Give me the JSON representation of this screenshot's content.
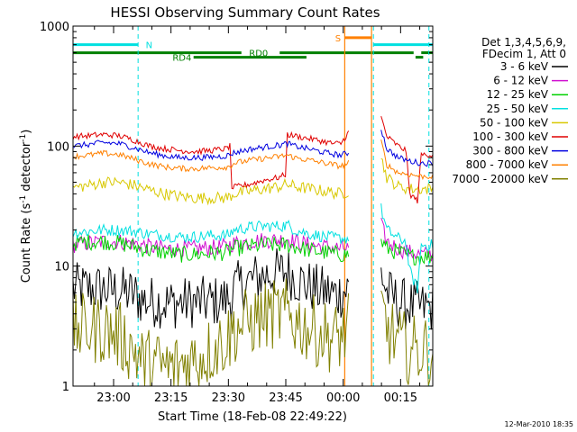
{
  "chart_data": {
    "type": "line",
    "title": "HESSI Observing Summary Count Rates",
    "xlabel": "Start Time (18-Feb-08 22:49:22)",
    "ylabel_main": "Count Rate (s",
    "ylabel_sup1": "-1",
    "ylabel_mid": " detector",
    "ylabel_sup2": "-1",
    "ylabel_end": ")",
    "y_scale": "log",
    "ylim": [
      1,
      1000
    ],
    "xlim_minutes": [
      0,
      94
    ],
    "x_ticks": [
      {
        "label": "23:00",
        "t": 10.6
      },
      {
        "label": "23:15",
        "t": 25.6
      },
      {
        "label": "23:30",
        "t": 40.6
      },
      {
        "label": "23:45",
        "t": 55.6
      },
      {
        "label": "00:00",
        "t": 70.6
      },
      {
        "label": "00:15",
        "t": 85.6
      }
    ],
    "y_ticks": [
      {
        "label": "1",
        "v": 1
      },
      {
        "label": "10",
        "v": 10
      },
      {
        "label": "100",
        "v": 100
      },
      {
        "label": "1000",
        "v": 1000
      }
    ],
    "legend_header": [
      "Det 1,3,4,5,6,9,",
      "FDecim 1, Att 0"
    ],
    "legend_placement": "right",
    "series": [
      {
        "name": "3 - 6 keV",
        "color": "#000000",
        "x": [
          0,
          4,
          8,
          12,
          16,
          18,
          22,
          26,
          30,
          34,
          38,
          41,
          42,
          45,
          48,
          51,
          54,
          56,
          58,
          61,
          64,
          67,
          69,
          70,
          72,
          80,
          80.5,
          82,
          85,
          88,
          91,
          94
        ],
        "y": [
          6.5,
          6.5,
          6.4,
          6.2,
          5.8,
          5.2,
          5.0,
          4.9,
          5.0,
          5.0,
          5.1,
          5.3,
          6.5,
          7.2,
          8.0,
          8.5,
          8.8,
          9.0,
          8.0,
          7.0,
          6.3,
          6.0,
          5.8,
          6.0,
          6.5,
          null,
          9.0,
          6.0,
          5.0,
          4.7,
          4.5,
          4.5
        ]
      },
      {
        "name": "6 - 12 keV",
        "color": "#d010d0",
        "x": [
          0,
          4,
          8,
          12,
          16,
          20,
          24,
          28,
          32,
          36,
          40,
          41,
          42,
          46,
          50,
          54,
          56,
          58,
          62,
          66,
          70,
          72,
          80,
          80.5,
          82,
          85,
          88,
          91,
          94
        ],
        "y": [
          15,
          15.5,
          16,
          16,
          15.5,
          14.5,
          14,
          13.8,
          14,
          14.2,
          14.5,
          15,
          15.5,
          16,
          16.5,
          16.5,
          17,
          16,
          15,
          14.5,
          14,
          14,
          null,
          22,
          16,
          14,
          13,
          12.5,
          12.5
        ]
      },
      {
        "name": "12 - 25 keV",
        "color": "#00d000",
        "x": [
          0,
          4,
          8,
          12,
          16,
          20,
          24,
          28,
          32,
          36,
          40,
          41,
          42,
          46,
          50,
          54,
          56,
          58,
          62,
          66,
          70,
          72,
          80,
          80.5,
          82,
          85,
          88,
          91,
          94
        ],
        "y": [
          15.5,
          16,
          16,
          15.5,
          14.5,
          13.5,
          13,
          12.5,
          12.5,
          12.8,
          13,
          13.5,
          14,
          14.5,
          15,
          15,
          15,
          14.5,
          13.5,
          13,
          12.5,
          12.5,
          null,
          16,
          14,
          13,
          12,
          12,
          12
        ]
      },
      {
        "name": "25 - 50 keV",
        "color": "#00e0e0",
        "x": [
          0,
          4,
          8,
          12,
          16,
          20,
          24,
          28,
          32,
          36,
          40,
          41,
          42,
          46,
          50,
          54,
          56,
          58,
          62,
          66,
          70,
          72,
          80,
          80.5,
          82,
          85,
          87,
          88,
          90,
          91,
          94
        ],
        "y": [
          19,
          19.5,
          20,
          20,
          19.5,
          18.5,
          18,
          17.5,
          17.5,
          18,
          18,
          18.5,
          20,
          21,
          21.5,
          21.5,
          22,
          20,
          18.5,
          17.5,
          17,
          17,
          null,
          30,
          20,
          17,
          16,
          9,
          6.5,
          15,
          15
        ]
      },
      {
        "name": "50 - 100 keV",
        "color": "#d8c800",
        "x": [
          0,
          4,
          8,
          12,
          16,
          20,
          24,
          28,
          32,
          36,
          40,
          41,
          42,
          46,
          50,
          54,
          56,
          58,
          62,
          66,
          70,
          72,
          80,
          80.5,
          82,
          85,
          88,
          91,
          94
        ],
        "y": [
          45,
          47,
          50,
          50,
          47,
          43,
          40,
          38,
          37,
          37,
          37,
          38,
          40,
          42,
          44,
          46,
          48,
          46,
          44,
          42,
          40,
          42,
          null,
          80,
          55,
          46,
          44,
          44,
          44
        ]
      },
      {
        "name": "100 - 300 keV",
        "color": "#e00000",
        "x": [
          0,
          4,
          8,
          12,
          16,
          20,
          24,
          28,
          32,
          36,
          40,
          41,
          41.5,
          46,
          50,
          54,
          55.5,
          56,
          60,
          64,
          68,
          70,
          72,
          80,
          80.5,
          82,
          85,
          87,
          88,
          90,
          91,
          94
        ],
        "y": [
          120,
          122,
          125,
          122,
          112,
          100,
          95,
          92,
          90,
          92,
          95,
          100,
          45,
          48,
          52,
          55,
          58,
          125,
          118,
          112,
          105,
          105,
          130,
          null,
          175,
          120,
          100,
          92,
          40,
          35,
          85,
          85
        ]
      },
      {
        "name": "300 - 800 keV",
        "color": "#0000e0",
        "x": [
          0,
          4,
          8,
          12,
          16,
          20,
          24,
          28,
          32,
          36,
          40,
          41,
          42,
          46,
          50,
          54,
          56,
          58,
          62,
          66,
          70,
          72,
          80,
          80.5,
          82,
          85,
          88,
          91,
          94
        ],
        "y": [
          100,
          103,
          107,
          105,
          97,
          88,
          83,
          80,
          80,
          81,
          83,
          85,
          88,
          94,
          98,
          102,
          105,
          100,
          94,
          88,
          84,
          88,
          null,
          140,
          95,
          80,
          75,
          72,
          72
        ]
      },
      {
        "name": "800 - 7000 keV",
        "color": "#ff8000",
        "x": [
          0,
          4,
          8,
          12,
          16,
          20,
          24,
          28,
          32,
          36,
          40,
          41,
          42,
          46,
          50,
          54,
          56,
          58,
          62,
          66,
          70,
          72,
          80,
          80.5,
          82,
          85,
          88,
          91,
          94
        ],
        "y": [
          82,
          84,
          87,
          85,
          78,
          71,
          67,
          65,
          65,
          66,
          67,
          68,
          72,
          76,
          79,
          82,
          84,
          80,
          76,
          72,
          68,
          72,
          null,
          110,
          70,
          60,
          58,
          56,
          56
        ]
      },
      {
        "name": "7000 - 20000 keV",
        "color": "#808000",
        "x": [
          0,
          4,
          8,
          12,
          16,
          18,
          22,
          26,
          30,
          34,
          38,
          41,
          42,
          45,
          48,
          51,
          54,
          56,
          58,
          61,
          64,
          67,
          69,
          70,
          72,
          80,
          80.5,
          82,
          85,
          88,
          91,
          94
        ],
        "y": [
          3.0,
          3.0,
          3.0,
          2.6,
          2.0,
          1.6,
          1.5,
          1.4,
          1.6,
          1.8,
          2.2,
          2.6,
          3.0,
          3.3,
          3.6,
          3.9,
          4.0,
          4.0,
          3.5,
          3.1,
          2.8,
          2.6,
          2.5,
          2.6,
          3.0,
          null,
          4.5,
          3.0,
          2.3,
          2.0,
          2.0,
          2.0
        ]
      }
    ],
    "dashed_lines": [
      {
        "t": 0,
        "color": "#00e0e0"
      },
      {
        "t": 17,
        "color": "#00e0e0"
      },
      {
        "t": 78.5,
        "color": "#00e0e0"
      },
      {
        "t": 93,
        "color": "#00e0e0"
      }
    ],
    "solid_lines": [
      {
        "t": 71,
        "color": "#ff8000"
      },
      {
        "t": 78,
        "color": "#ff8000"
      }
    ],
    "flag_bars": [
      {
        "label": "N",
        "color": "#00e0e0",
        "y": 700,
        "segments": [
          [
            0,
            17
          ],
          [
            78.5,
            94
          ]
        ],
        "label_t": 19
      },
      {
        "label": "S",
        "color": "#ff8000",
        "y": 800,
        "segments": [
          [
            71,
            78
          ]
        ],
        "label_t": 68.5
      },
      {
        "label": "RD0",
        "color": "#008000",
        "y": 600,
        "segments": [
          [
            0,
            44
          ],
          [
            54,
            89
          ],
          [
            91,
            94
          ]
        ],
        "label_t": 46
      },
      {
        "label": "RD4",
        "color": "#008000",
        "y": 550,
        "segments": [
          [
            31.5,
            61
          ],
          [
            89.5,
            91.5
          ]
        ],
        "label_t": 26
      }
    ]
  },
  "footer": {
    "timestamp": "12-Mar-2010 18:35"
  }
}
